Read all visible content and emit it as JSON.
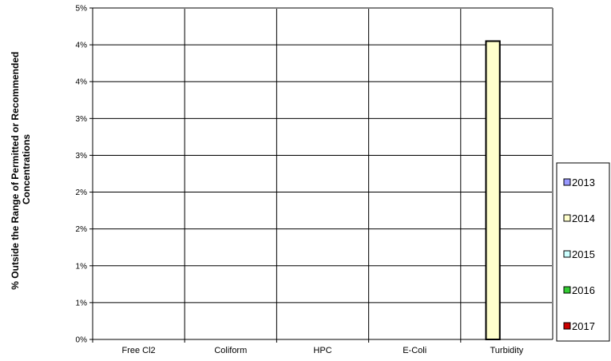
{
  "chart_data": {
    "type": "bar",
    "title": "",
    "xlabel": "",
    "ylabel_lines": [
      "% Outside the Range of Permitted or Recommended",
      "Concentrations"
    ],
    "categories": [
      "Free Cl2",
      "Coliform",
      "HPC",
      "E-Coli",
      "Turbidity"
    ],
    "ytick_labels": [
      "0%",
      "1%",
      "1%",
      "2%",
      "2%",
      "3%",
      "3%",
      "4%",
      "4%",
      "5%"
    ],
    "ylim": [
      0,
      5
    ],
    "grid": true,
    "legend_position": "right",
    "series": [
      {
        "name": "2013",
        "color": "#9999ff",
        "values": [
          0,
          0,
          0,
          0,
          0
        ]
      },
      {
        "name": "2014",
        "color": "#ffffcc",
        "values": [
          0,
          0,
          0,
          0,
          4.5
        ]
      },
      {
        "name": "2015",
        "color": "#ccffff",
        "values": [
          0,
          0,
          0,
          0,
          0
        ]
      },
      {
        "name": "2016",
        "color": "#33cc33",
        "values": [
          0,
          0,
          0,
          0,
          0
        ]
      },
      {
        "name": "2017",
        "color": "#cc0000",
        "values": [
          0,
          0,
          0,
          0,
          0
        ]
      }
    ]
  }
}
